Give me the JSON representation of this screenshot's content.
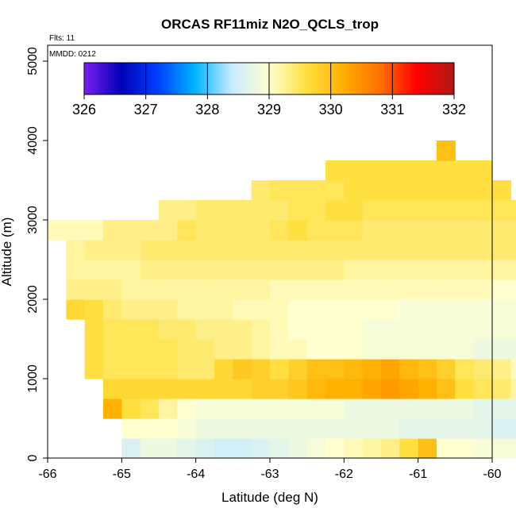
{
  "chart_data": {
    "type": "heatmap",
    "title": "ORCAS RF11miz N2O_QCLS_trop",
    "annotations": [
      "Flts: 11",
      "MMDD: 0212"
    ],
    "xlabel": "Latitude (deg N)",
    "ylabel": "Altitude (m)",
    "xlim": [
      -66,
      -60
    ],
    "ylim": [
      0,
      5200
    ],
    "x_ticks": [
      "-66",
      "-65",
      "-64",
      "-63",
      "-62",
      "-61",
      "-60"
    ],
    "y_ticks": [
      "0",
      "1000",
      "2000",
      "3000",
      "4000",
      "5000"
    ],
    "colorbar": {
      "min": 326,
      "max": 332,
      "ticks": [
        "326",
        "327",
        "328",
        "329",
        "330",
        "331",
        "332"
      ],
      "colors": [
        "#7b20f0",
        "#0000b8",
        "#0040ff",
        "#00b4ff",
        "#c8ecff",
        "#ffffd0",
        "#ffe040",
        "#ffb000",
        "#ff7000",
        "#ff0000",
        "#b01818"
      ]
    },
    "cell_size": {
      "lat": 0.25,
      "alt": 250
    },
    "rows": [
      {
        "alt": 125,
        "start": -65.0,
        "values": [
          328.6,
          328.8,
          328.8,
          328.7,
          328.6,
          328.5,
          328.5,
          328.6,
          328.7,
          328.8,
          328.9,
          329.0,
          329.1,
          329.2,
          329.3,
          329.6,
          330.0,
          329.0,
          329.0,
          328.9,
          328.9,
          328.9,
          328.9
        ]
      },
      {
        "alt": 375,
        "start": -65.0,
        "values": [
          329.0,
          329.0,
          329.0,
          328.9,
          328.8,
          328.8,
          328.8,
          328.8,
          328.8,
          328.8,
          328.8,
          328.8,
          328.8,
          328.8,
          328.8,
          328.7,
          328.7,
          328.7,
          328.7,
          328.7,
          328.6,
          328.6,
          328.6
        ]
      },
      {
        "alt": 625,
        "start": -65.25,
        "values": [
          330.2,
          329.6,
          329.5,
          329.2,
          329.0,
          328.9,
          328.9,
          328.9,
          328.9,
          328.9,
          328.9,
          328.9,
          328.9,
          328.8,
          328.8,
          328.8,
          328.8,
          328.8,
          328.8,
          328.8,
          328.7,
          328.7,
          328.7,
          328.6,
          328.6
        ]
      },
      {
        "alt": 875,
        "start": -65.25,
        "values": [
          329.7,
          329.7,
          329.7,
          329.7,
          329.7,
          329.7,
          329.7,
          329.7,
          329.8,
          329.8,
          329.9,
          330.1,
          330.2,
          330.2,
          330.3,
          330.4,
          330.3,
          330.2,
          330.0,
          329.6,
          329.5,
          329.4,
          329.2,
          328.8,
          328.7
        ]
      },
      {
        "alt": 1125,
        "start": -65.5,
        "values": [
          329.6,
          329.5,
          329.5,
          329.5,
          329.5,
          329.4,
          329.4,
          329.7,
          329.9,
          329.8,
          329.6,
          329.8,
          330.0,
          330.0,
          330.1,
          330.2,
          330.3,
          330.1,
          330.0,
          329.8,
          329.5,
          329.4,
          329.3,
          329.1,
          328.8,
          328.7,
          328.6,
          328.6
        ]
      },
      {
        "alt": 1375,
        "start": -65.5,
        "values": [
          329.6,
          329.5,
          329.5,
          329.5,
          329.5,
          329.4,
          329.4,
          329.3,
          329.3,
          329.2,
          329.1,
          329.1,
          329.0,
          329.0,
          329.0,
          328.9,
          328.9,
          328.9,
          328.9,
          328.9,
          328.9,
          328.8,
          328.8,
          328.8,
          328.8,
          328.8,
          328.7,
          328.7
        ]
      },
      {
        "alt": 1625,
        "start": -65.5,
        "values": [
          329.6,
          329.5,
          329.5,
          329.5,
          329.4,
          329.4,
          329.3,
          329.3,
          329.3,
          329.2,
          329.1,
          329.0,
          329.0,
          329.0,
          329.0,
          328.9,
          328.9,
          328.9,
          328.9,
          328.9,
          328.9,
          328.9,
          328.9,
          328.9,
          328.9,
          328.9,
          328.9,
          328.8
        ]
      },
      {
        "alt": 1875,
        "start": -65.75,
        "values": [
          329.7,
          329.6,
          329.4,
          329.3,
          329.3,
          329.3,
          329.2,
          329.2,
          329.2,
          329.1,
          329.1,
          329.1,
          329.0,
          329.0,
          329.0,
          329.0,
          329.0,
          329.0,
          328.9,
          328.9,
          328.9,
          328.9,
          328.9,
          328.9,
          328.9,
          328.9,
          328.9,
          328.9,
          328.9
        ]
      },
      {
        "alt": 2125,
        "start": -65.75,
        "values": [
          329.3,
          329.3,
          329.3,
          329.2,
          329.2,
          329.2,
          329.2,
          329.2,
          329.2,
          329.2,
          329.2,
          329.1,
          329.1,
          329.1,
          329.1,
          329.1,
          329.1,
          329.1,
          329.1,
          329.1,
          329.1,
          329.1,
          329.1,
          329.0,
          329.0,
          329.0,
          329.0,
          329.0,
          329.0
        ]
      },
      {
        "alt": 2375,
        "start": -65.75,
        "values": [
          329.2,
          329.2,
          329.2,
          329.2,
          329.3,
          329.3,
          329.3,
          329.3,
          329.3,
          329.3,
          329.3,
          329.3,
          329.3,
          329.3,
          329.3,
          329.2,
          329.2,
          329.2,
          329.2,
          329.2,
          329.2,
          329.2,
          329.2,
          329.2,
          329.2,
          329.2,
          329.2,
          329.2,
          329.2
        ]
      },
      {
        "alt": 2625,
        "start": -65.75,
        "values": [
          329.2,
          329.3,
          329.3,
          329.3,
          329.4,
          329.4,
          329.4,
          329.4,
          329.4,
          329.4,
          329.4,
          329.4,
          329.4,
          329.4,
          329.4,
          329.4,
          329.4,
          329.4,
          329.4,
          329.4,
          329.4,
          329.4,
          329.4,
          329.4,
          329.4,
          329.4,
          329.4,
          329.4,
          329.3
        ]
      },
      {
        "alt": 2875,
        "start": -66.0,
        "values": [
          329.1,
          329.1,
          329.1,
          329.3,
          329.3,
          329.3,
          329.3,
          329.5,
          329.4,
          329.4,
          329.4,
          329.4,
          329.5,
          329.6,
          329.5,
          329.5,
          329.5,
          329.4,
          329.4,
          329.4,
          329.4,
          329.4,
          329.4,
          329.4,
          329.4,
          329.4,
          329.5,
          329.5,
          329.5,
          329.5,
          329.5,
          329.5
        ]
      },
      {
        "alt": 3125,
        "start": -64.5,
        "values": [
          329.3,
          329.3,
          329.4,
          329.4,
          329.4,
          329.4,
          329.4,
          329.5,
          329.5,
          329.6,
          329.6,
          329.5,
          329.5,
          329.5,
          329.5,
          329.5,
          329.5,
          329.5,
          329.5,
          329.5,
          329.5,
          329.5,
          329.5,
          329.5
        ]
      },
      {
        "alt": 3375,
        "start": -63.25,
        "values": [
          329.4,
          329.5,
          329.5,
          329.5,
          329.5,
          329.6,
          329.6,
          329.6,
          329.6,
          329.6,
          329.6,
          329.6,
          329.6,
          329.6
        ]
      },
      {
        "alt": 3625,
        "start": -62.25,
        "values": [
          329.6,
          329.6,
          329.6,
          329.6,
          329.6,
          329.6,
          329.6,
          329.6,
          329.6
        ]
      },
      {
        "alt": 3875,
        "start": -60.75,
        "values": [
          330.0
        ]
      }
    ]
  }
}
